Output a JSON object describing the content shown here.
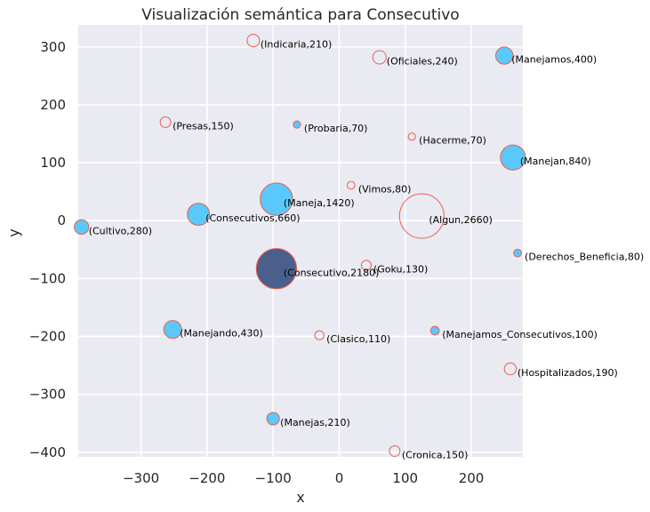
{
  "chart_data": {
    "type": "scatter",
    "title": "Visualización semántica para Consecutivo",
    "xlabel": "x",
    "ylabel": "y",
    "xlim": [
      -395,
      278
    ],
    "ylim": [
      -408,
      338
    ],
    "xticks": [
      -300,
      -200,
      -100,
      0,
      100,
      200
    ],
    "yticks": [
      300,
      200,
      100,
      0,
      -100,
      -200,
      -300,
      -400
    ],
    "xtick_labels": [
      "−300",
      "−200",
      "−100",
      "0",
      "100",
      "200"
    ],
    "ytick_labels": [
      "300",
      "200",
      "100",
      "0",
      "−100",
      "−200",
      "−300",
      "−400"
    ],
    "grid": true,
    "colors": {
      "background": "#eaeaf2",
      "grid": "#ffffff",
      "filled": "#5bc8fb",
      "highlight": "#4a5f8c",
      "edge": "#e8604c"
    },
    "points": [
      {
        "label": "(Indicaria,210)",
        "x": -130,
        "y": 311,
        "size": 210,
        "filled": false
      },
      {
        "label": "(Oficiales,240)",
        "x": 61,
        "y": 282,
        "size": 240,
        "filled": false
      },
      {
        "label": "(Manejamos,400)",
        "x": 250,
        "y": 285,
        "size": 400,
        "filled": true
      },
      {
        "label": "(Presas,150)",
        "x": -263,
        "y": 170,
        "size": 150,
        "filled": false
      },
      {
        "label": "(Probaria,70)",
        "x": -64,
        "y": 166,
        "size": 70,
        "filled": true
      },
      {
        "label": "(Hacerme,70)",
        "x": 110,
        "y": 145,
        "size": 70,
        "filled": false
      },
      {
        "label": "(Manejan,840)",
        "x": 263,
        "y": 109,
        "size": 840,
        "filled": true
      },
      {
        "label": "(Vimos,80)",
        "x": 18,
        "y": 61,
        "size": 80,
        "filled": false
      },
      {
        "label": "(Maneja,1420)",
        "x": -95,
        "y": 37,
        "size": 1420,
        "filled": true
      },
      {
        "label": "(Consecutivos,660)",
        "x": -213,
        "y": 11,
        "size": 660,
        "filled": true
      },
      {
        "label": "(Algun,2660)",
        "x": 125,
        "y": 8,
        "size": 2660,
        "filled": false
      },
      {
        "label": "(Cultivo,280)",
        "x": -390,
        "y": -11,
        "size": 280,
        "filled": true
      },
      {
        "label": "(Derechos_Beneficia,80)",
        "x": 270,
        "y": -56,
        "size": 80,
        "filled": true
      },
      {
        "label": "(Goku,130)",
        "x": 41,
        "y": -77,
        "size": 130,
        "filled": false
      },
      {
        "label": "(Consecutivo,2180)",
        "x": -95,
        "y": -83,
        "size": 2180,
        "filled": true,
        "highlight": true
      },
      {
        "label": "(Manejando,430)",
        "x": -252,
        "y": -188,
        "size": 430,
        "filled": true
      },
      {
        "label": "(Clasico,110)",
        "x": -30,
        "y": -198,
        "size": 110,
        "filled": false
      },
      {
        "label": "(Manejamos_Consecutivos,100)",
        "x": 145,
        "y": -190,
        "size": 100,
        "filled": true
      },
      {
        "label": "(Hospitalizados,190)",
        "x": 259,
        "y": -256,
        "size": 190,
        "filled": false
      },
      {
        "label": "(Manejas,210)",
        "x": -100,
        "y": -342,
        "size": 210,
        "filled": true
      },
      {
        "label": "(Cronica,150)",
        "x": 84,
        "y": -398,
        "size": 150,
        "filled": false
      }
    ]
  }
}
